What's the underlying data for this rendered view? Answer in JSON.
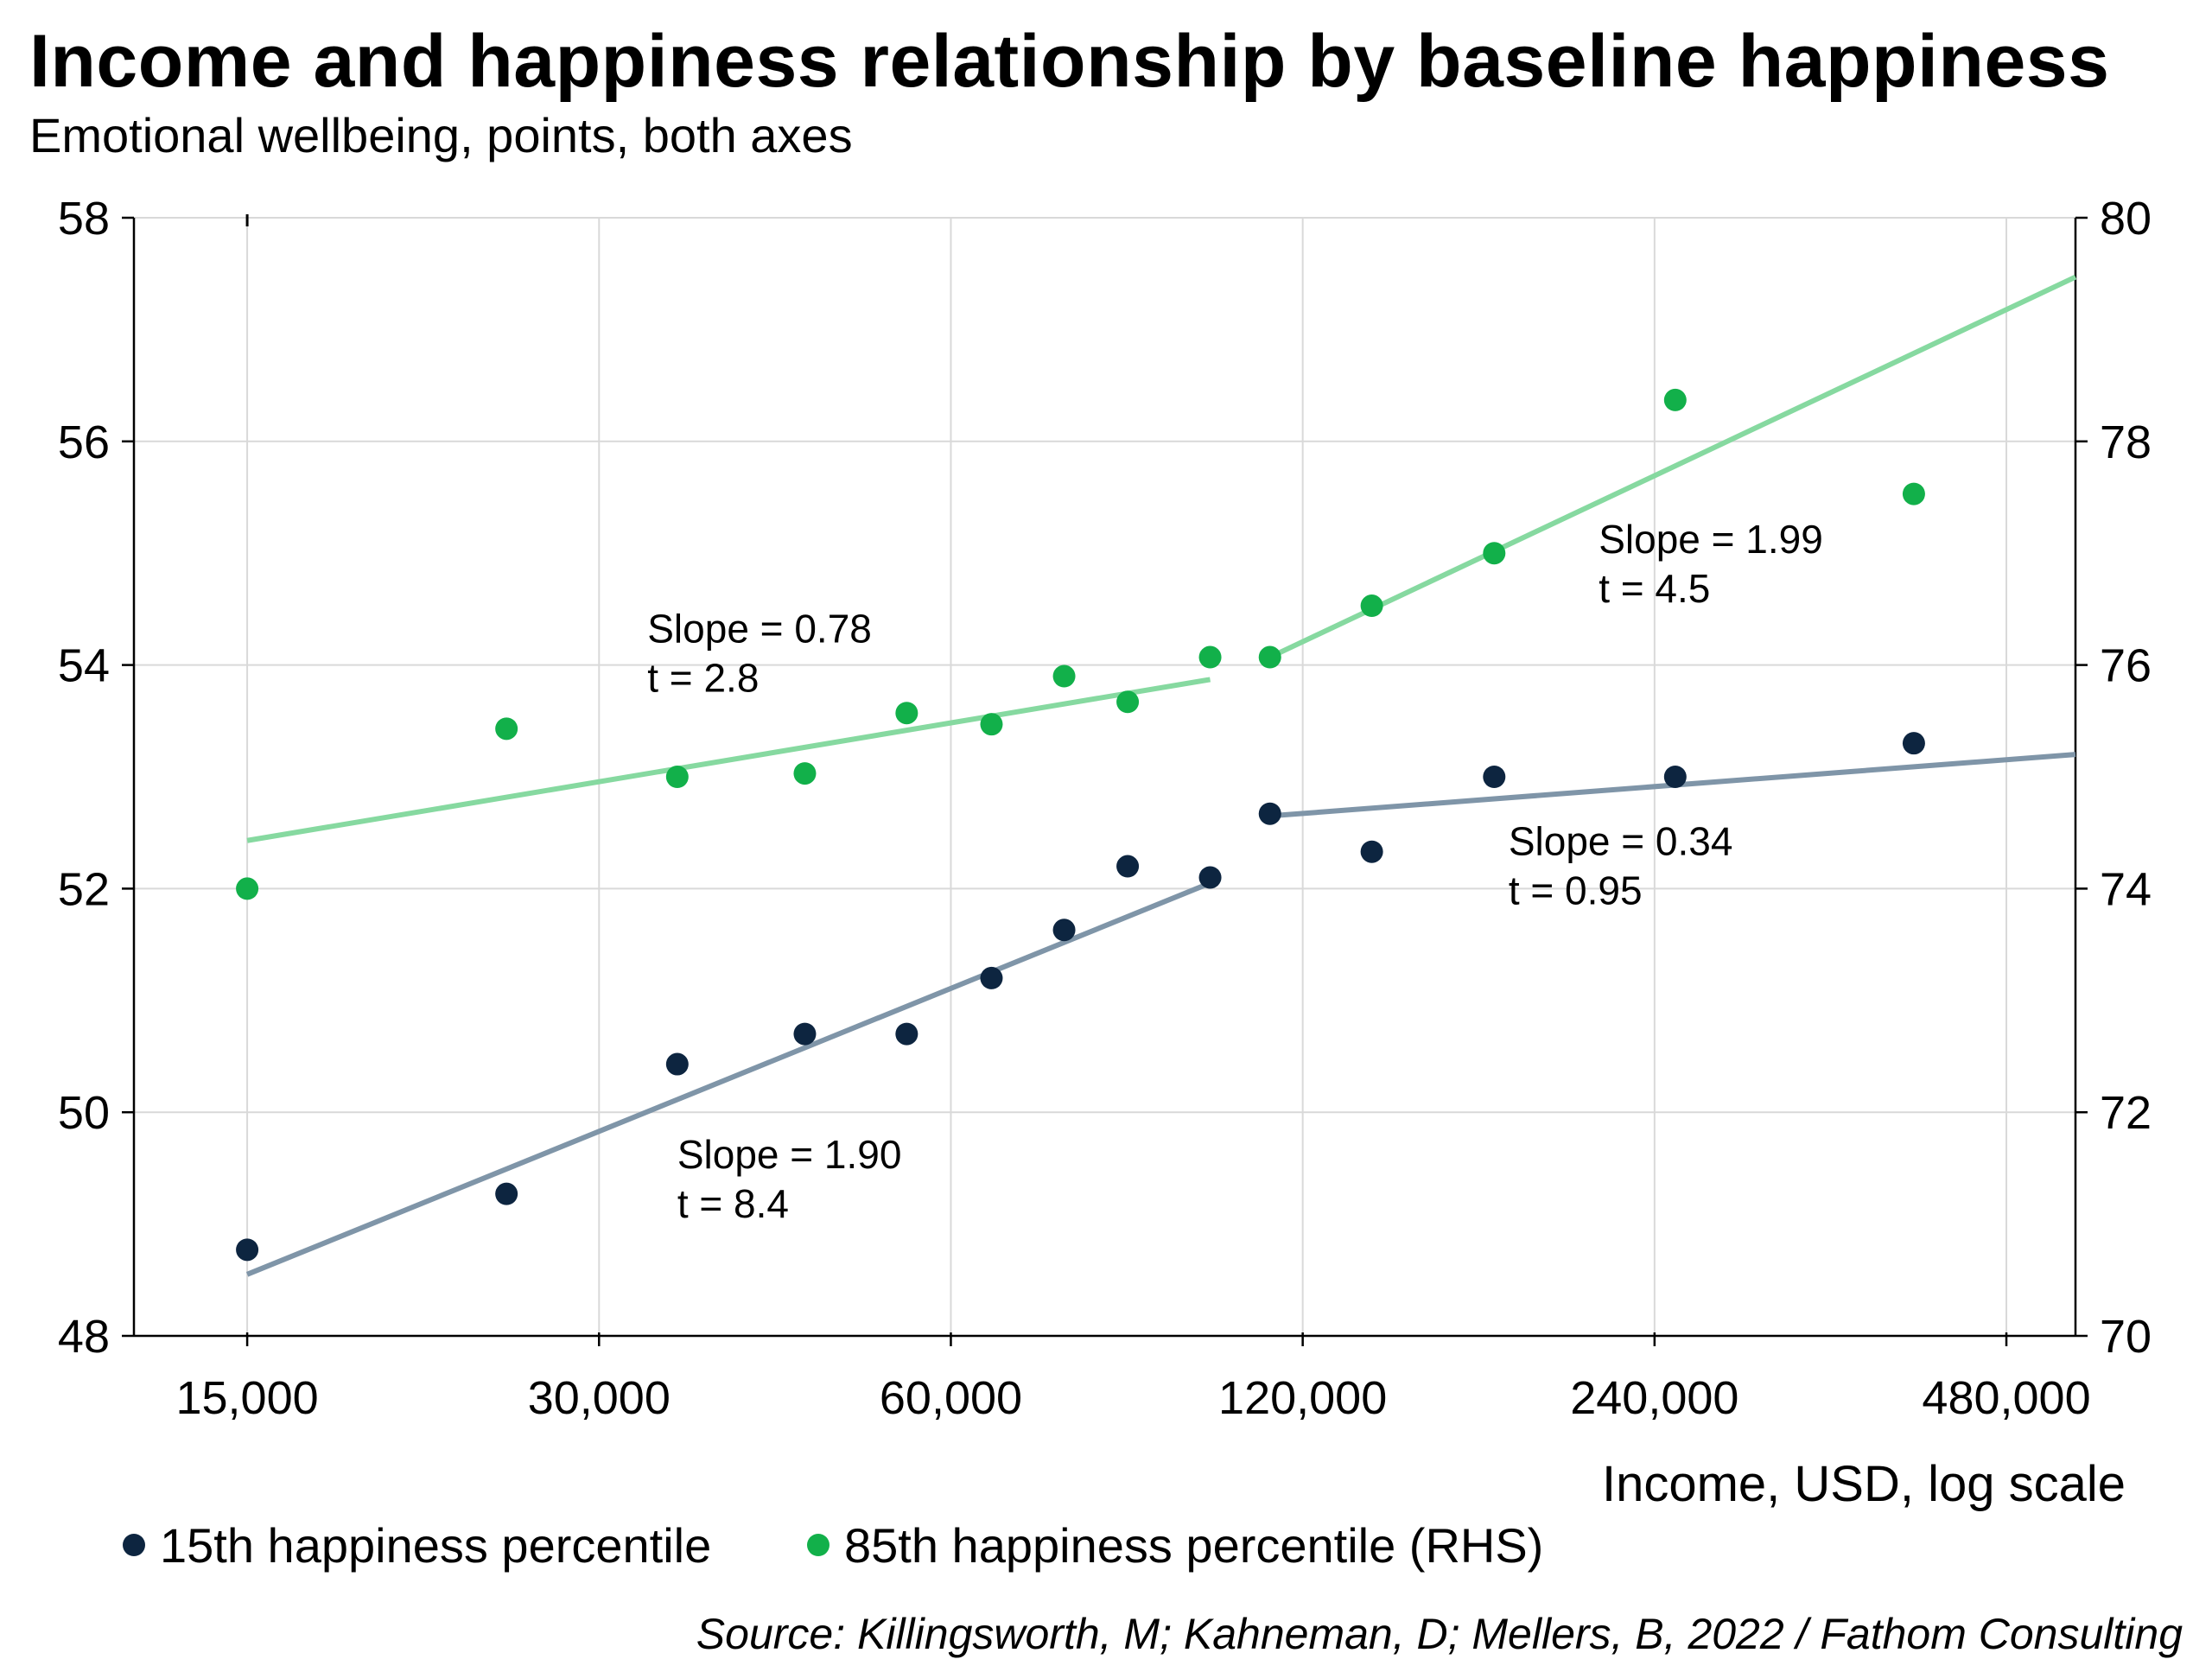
{
  "title": "Income and happiness relationship by baseline happiness",
  "subtitle": "Emotional wellbeing, points, both axes",
  "source": "Source: Killingsworth, M; Kahneman, D; Mellers, B, 2022 / Fathom Consulting",
  "chart_data": {
    "type": "scatter",
    "xlabel": "Income, USD, log scale",
    "x_scale": "log2",
    "xlim": [
      12000,
      550000
    ],
    "x_ticks": [
      15000,
      30000,
      60000,
      120000,
      240000,
      480000
    ],
    "x_tick_labels": [
      "15,000",
      "30,000",
      "60,000",
      "120,000",
      "240,000",
      "480,000"
    ],
    "y_left": {
      "lim": [
        48,
        58
      ],
      "ticks": [
        48,
        50,
        52,
        54,
        56,
        58
      ]
    },
    "y_right": {
      "lim": [
        70,
        80
      ],
      "ticks": [
        70,
        72,
        74,
        76,
        78,
        80
      ]
    },
    "grid": true,
    "legend_position": "bottom",
    "colors": {
      "series_15th": "#0d2540",
      "series_85th": "#12b04a",
      "fit_15th": "#7f95a8",
      "fit_85th": "#86d9a0",
      "grid": "#d9d9d9"
    },
    "series": [
      {
        "name": "15th happiness percentile",
        "axis": "left",
        "x": [
          15000,
          25000,
          35000,
          45000,
          55000,
          65000,
          75000,
          85000,
          100000,
          112500,
          137500,
          175000,
          250000,
          400000
        ],
        "y": [
          48.77,
          49.27,
          50.43,
          50.7,
          50.7,
          51.2,
          51.63,
          52.2,
          52.1,
          52.67,
          52.33,
          53.0,
          53.0,
          53.3
        ],
        "fits": [
          {
            "x": [
              15000,
              100000
            ],
            "y": [
              48.55,
              52.05
            ]
          },
          {
            "x": [
              112500,
              550000
            ],
            "y": [
              52.65,
              53.2
            ]
          }
        ]
      },
      {
        "name": "85th happiness percentile (RHS)",
        "axis": "right",
        "x": [
          15000,
          25000,
          35000,
          45000,
          55000,
          65000,
          75000,
          85000,
          100000,
          112500,
          137500,
          175000,
          250000,
          400000
        ],
        "y": [
          74.0,
          75.43,
          75.0,
          75.03,
          75.57,
          75.47,
          75.9,
          75.67,
          76.07,
          76.07,
          76.53,
          77.0,
          78.37,
          77.53
        ],
        "fits": [
          {
            "x": [
              15000,
              100000
            ],
            "y": [
              74.43,
              75.87
            ]
          },
          {
            "x": [
              112500,
              550000
            ],
            "y": [
              76.07,
              79.47
            ]
          }
        ]
      }
    ],
    "annotations": [
      {
        "lines": [
          "Slope = 0.78",
          "t =  2.8"
        ],
        "x": 33000,
        "y_left": 54.2
      },
      {
        "lines": [
          "Slope = 1.99",
          "t =  4.5"
        ],
        "x": 215000,
        "y_left": 55.0
      },
      {
        "lines": [
          "Slope = 0.34",
          "t =  0.95"
        ],
        "x": 180000,
        "y_left": 52.3
      },
      {
        "lines": [
          "Slope = 1.90",
          "t =  8.4"
        ],
        "x": 35000,
        "y_left": 49.5
      }
    ]
  }
}
